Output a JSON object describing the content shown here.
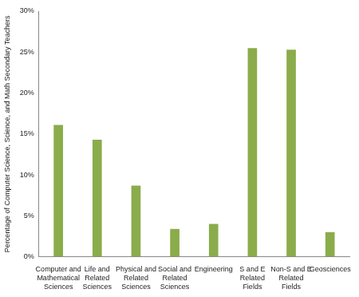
{
  "chart_data": {
    "type": "bar",
    "y_label": "Percentage of Computer Science, Science, and Math Secondary Teachers",
    "categories": [
      "Computer and Mathematical Sciences",
      "Life and Related Sciences",
      "Physical and Related Sciences",
      "Social and Related Sciences",
      "Engineering",
      "S and E Related Fields",
      "Non-S and E Related Fields",
      "Geosciences"
    ],
    "values": [
      16.1,
      14.3,
      8.7,
      3.4,
      4.0,
      25.5,
      25.3,
      3.0
    ],
    "color": "#8aac4b",
    "ylim": [
      0,
      30
    ],
    "yticks": [
      {
        "value": 0,
        "label": "0%"
      },
      {
        "value": 5,
        "label": "5%"
      },
      {
        "value": 10,
        "label": "10%"
      },
      {
        "value": 15,
        "label": "15%"
      },
      {
        "value": 20,
        "label": "20%"
      },
      {
        "value": 25,
        "label": "25%"
      },
      {
        "value": 30,
        "label": "30%"
      }
    ],
    "grid": false
  }
}
